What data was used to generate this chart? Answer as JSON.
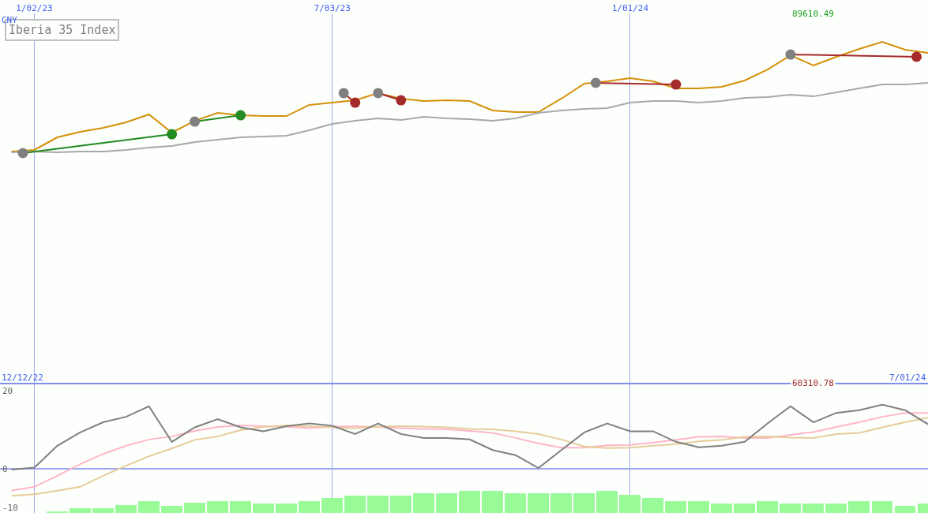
{
  "chart_data": [
    {
      "type": "line",
      "title": "Iberia 35 Index",
      "ylabel": "CNY",
      "grid": "x",
      "x": [
        "2022-12-19",
        "2023-01-02",
        "2023-01-16",
        "2023-01-30",
        "2023-02-13",
        "2023-02-27",
        "2023-03-13",
        "2023-03-27",
        "2023-04-10",
        "2023-04-24",
        "2023-05-08",
        "2023-05-22",
        "2023-06-05",
        "2023-06-19",
        "2023-07-03",
        "2023-07-17",
        "2023-07-31",
        "2023-08-14",
        "2023-08-28",
        "2023-09-11",
        "2023-09-25",
        "2023-10-09",
        "2023-10-23",
        "2023-11-06",
        "2023-11-20",
        "2023-12-04",
        "2023-12-18",
        "2024-01-01",
        "2024-01-15",
        "2024-01-29",
        "2024-02-12",
        "2024-02-26",
        "2024-03-11",
        "2024-03-25",
        "2024-04-08",
        "2024-04-22",
        "2024-05-06",
        "2024-05-20",
        "2024-06-03",
        "2024-06-17",
        "2024-07-01"
      ],
      "xlim": [
        "2022-12-12",
        "2024-07-01"
      ],
      "xticks": [
        {
          "value": "2023-01-02",
          "label": "1/02/23"
        },
        {
          "value": "2023-07-03",
          "label": "7/03/23"
        },
        {
          "value": "2024-01-01",
          "label": "1/01/24"
        }
      ],
      "ylim": [
        60310.78,
        89610.49
      ],
      "yticks": [
        {
          "value": 60310.78,
          "label": "60310.78"
        },
        {
          "value": 89610.49,
          "label": "89610.49"
        }
      ],
      "series": [
        {
          "color": "#d4900a",
          "values": [
            78650,
            78780,
            79780,
            80220,
            80530,
            80970,
            81600,
            80160,
            81090,
            81720,
            81530,
            81470,
            81470,
            82350,
            82530,
            82720,
            83290,
            82850,
            82660,
            82720,
            82660,
            81910,
            81780,
            81780,
            82850,
            84040,
            84220,
            84470,
            84220,
            83660,
            83660,
            83790,
            84290,
            85160,
            86290,
            85480,
            86170,
            86790,
            87350,
            86730,
            86480
          ]
        },
        {
          "color": "#a8a8a8",
          "values": [
            78590,
            78650,
            78590,
            78650,
            78650,
            78780,
            78970,
            79090,
            79400,
            79590,
            79780,
            79840,
            79910,
            80340,
            80840,
            81090,
            81280,
            81160,
            81410,
            81280,
            81220,
            81090,
            81280,
            81720,
            81910,
            82030,
            82100,
            82530,
            82660,
            82660,
            82530,
            82660,
            82910,
            82970,
            83160,
            83030,
            83350,
            83660,
            83970,
            83970,
            84100
          ]
        },
        {
          "color": "#228b22",
          "x": [
            "2022-12-26",
            "2023-03-27",
            null,
            "2023-04-10",
            "2023-05-08"
          ],
          "values": [
            78530,
            80030,
            null,
            81030,
            81530
          ]
        },
        {
          "color": "#a52a2a",
          "x": [
            "2023-07-10",
            "2023-07-17",
            null,
            "2023-07-31",
            "2023-08-14",
            null,
            "2023-12-11",
            "2024-01-29",
            null,
            "2024-04-08",
            "2024-06-24"
          ],
          "values": [
            83290,
            82530,
            null,
            83290,
            82720,
            null,
            84100,
            83970,
            null,
            86350,
            86170
          ]
        },
        {
          "type": "scatter",
          "marker": "circle",
          "color": "#808080",
          "x": [
            "2022-12-26",
            "2023-04-10",
            "2023-07-10",
            "2023-07-31",
            "2023-12-11",
            "2024-04-08"
          ],
          "values": [
            78530,
            81030,
            83290,
            83290,
            84100,
            86350
          ]
        },
        {
          "type": "scatter",
          "marker": "circle",
          "color": "#228b22",
          "x": [
            "2023-03-27",
            "2023-05-08"
          ],
          "values": [
            80030,
            81530
          ]
        },
        {
          "type": "scatter",
          "marker": "circle",
          "color": "#a52a2a",
          "x": [
            "2023-07-17",
            "2023-08-14",
            "2024-01-29",
            "2024-06-24"
          ],
          "values": [
            82530,
            82720,
            83970,
            86170
          ]
        }
      ]
    },
    {
      "type": "line",
      "grid": "x",
      "tick_labels": "y",
      "annotations": [
        "12/12/22",
        "7/01/24"
      ],
      "x": [
        "2022-12-19",
        "2023-01-02",
        "2023-01-16",
        "2023-01-30",
        "2023-02-13",
        "2023-02-27",
        "2023-03-13",
        "2023-03-27",
        "2023-04-10",
        "2023-04-24",
        "2023-05-08",
        "2023-05-22",
        "2023-06-05",
        "2023-06-19",
        "2023-07-03",
        "2023-07-17",
        "2023-07-31",
        "2023-08-14",
        "2023-08-28",
        "2023-09-11",
        "2023-09-25",
        "2023-10-09",
        "2023-10-23",
        "2023-11-06",
        "2023-11-20",
        "2023-12-04",
        "2023-12-18",
        "2024-01-01",
        "2024-01-15",
        "2024-01-29",
        "2024-02-12",
        "2024-02-26",
        "2024-03-11",
        "2024-03-25",
        "2024-04-08",
        "2024-04-22",
        "2024-05-06",
        "2024-05-20",
        "2024-06-03",
        "2024-06-17",
        "2024-07-01"
      ],
      "xlim": [
        "2022-12-12",
        "2024-07-01"
      ],
      "xticks": [
        {
          "value": "2023-01-02",
          "label": null
        },
        {
          "value": "2023-07-03",
          "label": null
        },
        {
          "value": "2024-01-01",
          "label": null
        }
      ],
      "ylim": [
        -11.3,
        21.6
      ],
      "yticks": [
        -10,
        0,
        20
      ],
      "ref_lines": [
        {
          "axis": "y",
          "value": 0,
          "color": "#a0a8f0"
        }
      ],
      "series": [
        {
          "type": "bar",
          "color": "#98fb98",
          "values": [
            null,
            null,
            0.5,
            1.2,
            1.2,
            2.0,
            3.0,
            1.9,
            2.7,
            3.0,
            3.0,
            2.5,
            2.5,
            3.0,
            3.8,
            4.4,
            4.5,
            4.5,
            5.1,
            5.1,
            5.7,
            5.7,
            5.1,
            5.1,
            5.1,
            5.1,
            5.7,
            4.7,
            3.9,
            3.0,
            3.0,
            2.4,
            2.4,
            3.0,
            2.4,
            2.4,
            2.4,
            3.0,
            3.0,
            1.9,
            2.4
          ],
          "base": [
            null,
            null,
            -11.3,
            -11.3,
            -11.3,
            -11.3,
            -11.3,
            -11.3,
            -11.3,
            -11.3,
            -11.3,
            -11.3,
            -11.3,
            -11.3,
            -11.3,
            -11.3,
            -11.3,
            -11.3,
            -11.3,
            -11.3,
            -11.3,
            -11.3,
            -11.3,
            -11.3,
            -11.3,
            -11.3,
            -11.3,
            -11.3,
            -11.3,
            -11.3,
            -11.3,
            -11.3,
            -11.3,
            -11.3,
            -11.3,
            -11.3,
            -11.3,
            -11.3,
            -11.3,
            -11.3,
            -11.3
          ]
        },
        {
          "color": "#ffb6c8",
          "values": [
            -5.6,
            -4.6,
            -1.8,
            1.2,
            3.8,
            5.9,
            7.5,
            8.3,
            9.7,
            10.7,
            11.1,
            10.9,
            10.8,
            10.4,
            10.8,
            10.9,
            10.7,
            10.4,
            10.2,
            10.1,
            9.7,
            9.2,
            7.9,
            6.5,
            5.4,
            5.4,
            6.0,
            6.1,
            6.7,
            7.4,
            8.2,
            8.3,
            7.9,
            7.9,
            8.7,
            9.4,
            10.7,
            11.9,
            13.3,
            14.3,
            14.3
          ]
        },
        {
          "color": "#e6cc99",
          "values": [
            -6.9,
            -6.5,
            -5.6,
            -4.6,
            -1.8,
            0.8,
            3.2,
            5.2,
            7.4,
            8.3,
            9.9,
            10.7,
            11.1,
            10.9,
            10.6,
            10.4,
            10.8,
            10.9,
            10.8,
            10.6,
            10.2,
            10.1,
            9.6,
            8.9,
            7.5,
            5.7,
            5.3,
            5.4,
            5.9,
            6.3,
            7.0,
            7.4,
            8.2,
            8.3,
            8.0,
            7.9,
            8.9,
            9.2,
            10.6,
            11.9,
            13.1
          ]
        },
        {
          "color": "#808080",
          "values": [
            -0.2,
            0.3,
            5.9,
            9.3,
            11.9,
            13.3,
            16.0,
            6.9,
            10.6,
            12.7,
            10.6,
            9.6,
            10.9,
            11.6,
            11.0,
            8.9,
            11.6,
            8.9,
            7.9,
            7.9,
            7.5,
            4.8,
            3.5,
            0.2,
            4.8,
            9.3,
            11.6,
            9.6,
            9.6,
            6.9,
            5.5,
            5.9,
            6.9,
            11.6,
            16.0,
            11.9,
            14.3,
            15.0,
            16.4,
            15.0,
            11.4
          ]
        }
      ]
    }
  ]
}
